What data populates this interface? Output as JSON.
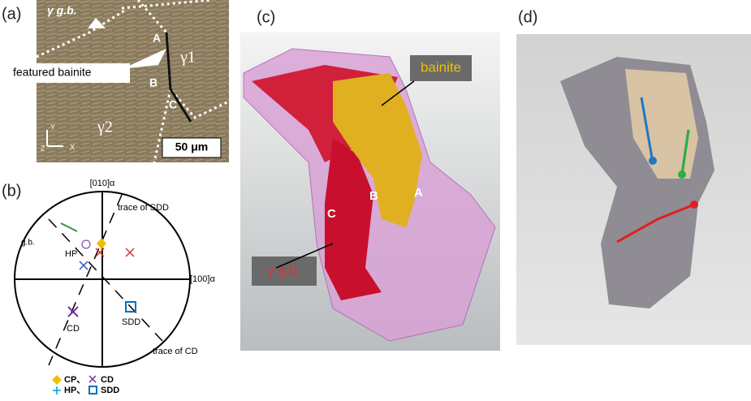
{
  "panel_a": {
    "label": "(a)",
    "gb": "γ g.b.",
    "A": "A",
    "B": "B",
    "C": "C",
    "featured": "featured bainite",
    "g1": "γ1",
    "g2": "γ2",
    "scale": "50 μm",
    "axis_y": "Y",
    "axis_z": "Z",
    "axis_x": "X"
  },
  "panel_b": {
    "label": "(b)",
    "dir010": "[010]α",
    "dir100": "[100]α",
    "trace_sdd": "trace of SDD",
    "gb": "g.b.",
    "hp": "HP",
    "cd": "CD",
    "sdd": "SDD",
    "trace_cd": "trace of CD",
    "legend": [
      "CP、",
      "CD",
      "HP、",
      "SDD"
    ]
  },
  "panel_c": {
    "label": "(c)",
    "bainite": "bainite",
    "B": "B",
    "A": "A",
    "C": "C",
    "gb": "γ g.b."
  },
  "panel_d": {
    "label": "(d)"
  }
}
